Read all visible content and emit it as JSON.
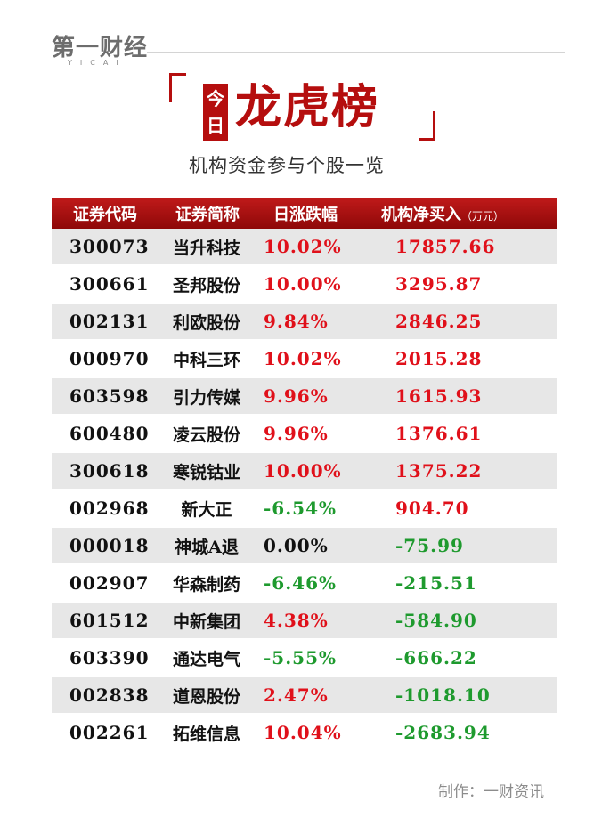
{
  "logo": {
    "cn": "第一财经",
    "en": "YICAI"
  },
  "title": {
    "today": [
      "今",
      "日"
    ],
    "main": "龙虎榜",
    "subtitle": "机构资金参与个股一览"
  },
  "colors": {
    "accent": "#b50e0e",
    "up": "#e0101a",
    "down": "#1e9a2e"
  },
  "table": {
    "headers": {
      "code": "证券代码",
      "name": "证券简称",
      "change": "日涨跌幅",
      "net": "机构净买入",
      "unit": "（万元）"
    },
    "rows": [
      {
        "code": "300073",
        "name": "当升科技",
        "change": "10.02%",
        "net": "17857.66",
        "change_color": "red",
        "net_color": "red"
      },
      {
        "code": "300661",
        "name": "圣邦股份",
        "change": "10.00%",
        "net": "3295.87",
        "change_color": "red",
        "net_color": "red"
      },
      {
        "code": "002131",
        "name": "利欧股份",
        "change": "9.84%",
        "net": "2846.25",
        "change_color": "red",
        "net_color": "red"
      },
      {
        "code": "000970",
        "name": "中科三环",
        "change": "10.02%",
        "net": "2015.28",
        "change_color": "red",
        "net_color": "red"
      },
      {
        "code": "603598",
        "name": "引力传媒",
        "change": "9.96%",
        "net": "1615.93",
        "change_color": "red",
        "net_color": "red"
      },
      {
        "code": "600480",
        "name": "凌云股份",
        "change": "9.96%",
        "net": "1376.61",
        "change_color": "red",
        "net_color": "red"
      },
      {
        "code": "300618",
        "name": "寒锐钴业",
        "change": "10.00%",
        "net": "1375.22",
        "change_color": "red",
        "net_color": "red"
      },
      {
        "code": "002968",
        "name": "新大正",
        "change": "-6.54%",
        "net": "904.70",
        "change_color": "green",
        "net_color": "red"
      },
      {
        "code": "000018",
        "name": "神城A退",
        "change": "0.00%",
        "net": "-75.99",
        "change_color": "black",
        "net_color": "green"
      },
      {
        "code": "002907",
        "name": "华森制药",
        "change": "-6.46%",
        "net": "-215.51",
        "change_color": "green",
        "net_color": "green"
      },
      {
        "code": "601512",
        "name": "中新集团",
        "change": "4.38%",
        "net": "-584.90",
        "change_color": "red",
        "net_color": "green"
      },
      {
        "code": "603390",
        "name": "通达电气",
        "change": "-5.55%",
        "net": "-666.22",
        "change_color": "green",
        "net_color": "green"
      },
      {
        "code": "002838",
        "name": "道恩股份",
        "change": "2.47%",
        "net": "-1018.10",
        "change_color": "red",
        "net_color": "green"
      },
      {
        "code": "002261",
        "name": "拓维信息",
        "change": "10.04%",
        "net": "-2683.94",
        "change_color": "red",
        "net_color": "green"
      }
    ]
  },
  "footer": {
    "maker": "制作：一财资讯"
  }
}
